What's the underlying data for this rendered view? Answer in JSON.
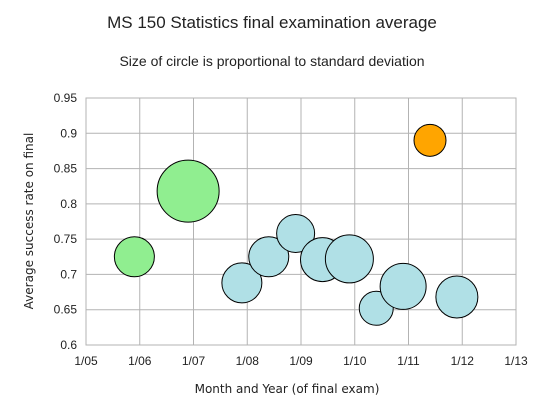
{
  "chart_data": {
    "type": "scatter",
    "title": "MS 150 Statistics final examination average",
    "subtitle": "Size of circle is proportional to standard deviation",
    "xlabel": "Month and Year (of final exam)",
    "ylabel": "Average success rate on final",
    "xlim": [
      2005.0,
      2013.0
    ],
    "ylim": [
      0.6,
      0.95
    ],
    "x_tick_labels": [
      "1/05",
      "1/06",
      "1/07",
      "1/08",
      "1/09",
      "1/10",
      "1/11",
      "1/12",
      "1/13"
    ],
    "y_tick_labels": [
      "0.6",
      "0.65",
      "0.7",
      "0.75",
      "0.8",
      "0.85",
      "0.9",
      "0.95"
    ],
    "grid": true,
    "legend": "none",
    "points": [
      {
        "x": 2005.9,
        "y": 0.725,
        "size": 20,
        "color": "#90ee90"
      },
      {
        "x": 2006.9,
        "y": 0.818,
        "size": 31,
        "color": "#90ee90"
      },
      {
        "x": 2007.9,
        "y": 0.688,
        "size": 20,
        "color": "#b0e0e6"
      },
      {
        "x": 2008.4,
        "y": 0.725,
        "size": 20,
        "color": "#b0e0e6"
      },
      {
        "x": 2008.9,
        "y": 0.758,
        "size": 19,
        "color": "#b0e0e6"
      },
      {
        "x": 2009.4,
        "y": 0.721,
        "size": 22,
        "color": "#b0e0e6"
      },
      {
        "x": 2009.9,
        "y": 0.722,
        "size": 24,
        "color": "#b0e0e6"
      },
      {
        "x": 2010.4,
        "y": 0.652,
        "size": 17,
        "color": "#b0e0e6"
      },
      {
        "x": 2010.9,
        "y": 0.683,
        "size": 23,
        "color": "#b0e0e6"
      },
      {
        "x": 2011.4,
        "y": 0.89,
        "size": 16,
        "color": "#ffa500"
      },
      {
        "x": 2011.9,
        "y": 0.668,
        "size": 21,
        "color": "#b0e0e6"
      }
    ]
  }
}
